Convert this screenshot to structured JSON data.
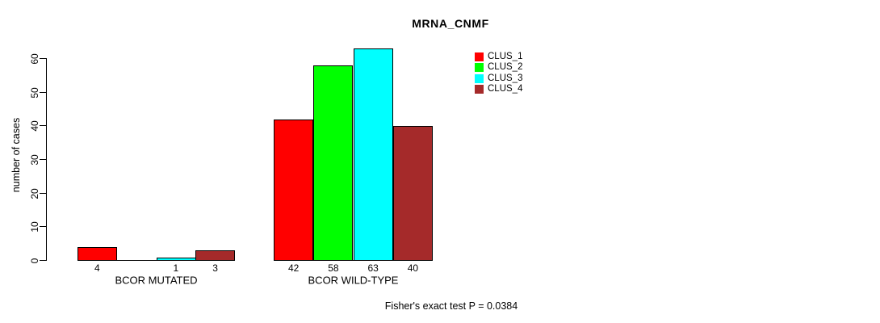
{
  "chart_data": {
    "type": "bar",
    "title": "MRNA_CNMF",
    "ylabel": "number of cases",
    "ylim": [
      0,
      60
    ],
    "yticks": [
      0,
      10,
      20,
      30,
      40,
      50,
      60
    ],
    "grid": false,
    "categories": [
      "BCOR MUTATED",
      "BCOR WILD-TYPE"
    ],
    "series": [
      {
        "name": "CLUS_1",
        "color": "#FF0000",
        "values": [
          4,
          42
        ]
      },
      {
        "name": "CLUS_2",
        "color": "#00FF00",
        "values": [
          0,
          58
        ]
      },
      {
        "name": "CLUS_3",
        "color": "#00FFFF",
        "values": [
          1,
          63
        ]
      },
      {
        "name": "CLUS_4",
        "color": "#A52A2A",
        "values": [
          3,
          40
        ]
      }
    ],
    "bar_value_labels": [
      [
        "4",
        "",
        "1",
        "3"
      ],
      [
        "42",
        "58",
        "63",
        "40"
      ]
    ],
    "legend": {
      "position": "top-right",
      "entries": [
        "CLUS_1",
        "CLUS_2",
        "CLUS_3",
        "CLUS_4"
      ]
    },
    "annotation": "Fisher's exact test P = 0.0384"
  }
}
